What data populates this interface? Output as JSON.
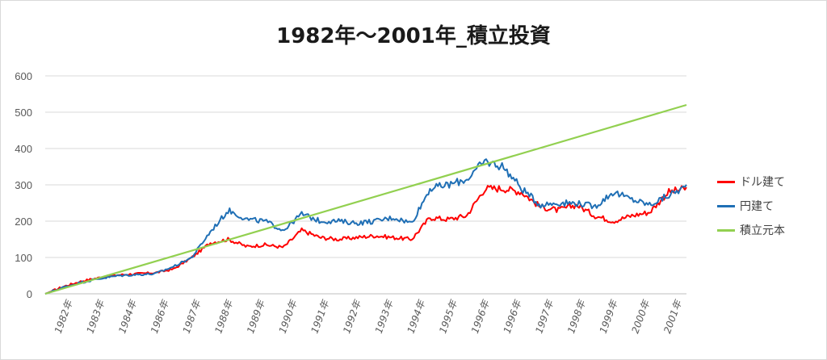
{
  "chart_data": {
    "type": "line",
    "title": "1982年～2001年_積立投資",
    "ylim": [
      0,
      600
    ],
    "yticks": [
      0,
      100,
      200,
      300,
      400,
      500,
      600
    ],
    "x_tick_labels": [
      "1982年",
      "1983年",
      "1984年",
      "1986年",
      "1987年",
      "1988年",
      "1989年",
      "1990年",
      "1991年",
      "1992年",
      "1993年",
      "1994年",
      "1995年",
      "1996年",
      "1996年",
      "1997年",
      "1998年",
      "1999年",
      "2000年",
      "2001年"
    ],
    "grid": true,
    "legend_position": "right",
    "series": [
      {
        "name": "ドル建て",
        "color": "#ff0000",
        "values": [
          0,
          20,
          35,
          45,
          52,
          55,
          58,
          68,
          100,
          140,
          150,
          130,
          135,
          128,
          175,
          155,
          150,
          155,
          160,
          155,
          150,
          210,
          205,
          215,
          290,
          290,
          280,
          240,
          230,
          245,
          215,
          200,
          215,
          225,
          280,
          290
        ]
      },
      {
        "name": "円建て",
        "color": "#1f6fb5",
        "values": [
          0,
          18,
          32,
          42,
          50,
          53,
          55,
          75,
          100,
          170,
          230,
          205,
          200,
          175,
          220,
          200,
          200,
          195,
          200,
          210,
          195,
          290,
          300,
          315,
          365,
          350,
          290,
          245,
          250,
          250,
          240,
          280,
          260,
          245,
          270,
          295
        ]
      },
      {
        "name": "積立元本",
        "color": "#92d050",
        "values": [
          0,
          520
        ]
      }
    ]
  }
}
